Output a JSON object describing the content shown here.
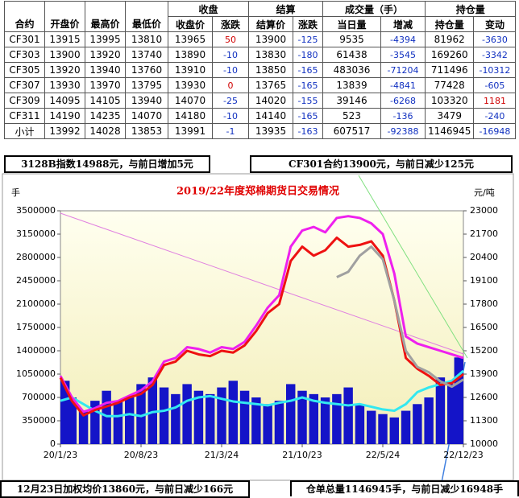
{
  "table": {
    "group_headers": [
      "收盘",
      "结算",
      "成交量（手）",
      "持仓量"
    ],
    "columns": [
      "合约",
      "开盘价",
      "最高价",
      "最低价",
      "收盘价",
      "涨跌",
      "结算价",
      "涨跌",
      "当日量",
      "增减",
      "持仓量",
      "变动"
    ],
    "rows": [
      [
        "CF301",
        13915,
        13995,
        13810,
        13965,
        50,
        13900,
        -125,
        9535,
        -4394,
        81962,
        -3630
      ],
      [
        "CF303",
        13900,
        13920,
        13740,
        13890,
        -10,
        13830,
        -180,
        61438,
        -3545,
        169260,
        -3342
      ],
      [
        "CF305",
        13920,
        13940,
        13760,
        13910,
        -10,
        13850,
        -165,
        483036,
        -71204,
        711496,
        -10312
      ],
      [
        "CF307",
        13930,
        13970,
        13795,
        13930,
        0,
        13765,
        -165,
        13839,
        -4841,
        77428,
        -605
      ],
      [
        "CF309",
        14095,
        14105,
        13940,
        14070,
        -25,
        14020,
        -155,
        39146,
        -6268,
        103320,
        1181
      ],
      [
        "CF311",
        14190,
        14235,
        14070,
        14180,
        -10,
        14140,
        -165,
        523,
        -136,
        3479,
        -240
      ],
      [
        "小计",
        13992,
        14028,
        13853,
        13991,
        -1,
        13935,
        -163,
        607517,
        -92388,
        1146945,
        -16948
      ]
    ]
  },
  "captions": [
    "3128B指数14988元，与前日增加5元",
    "CF301合约13900元，与前日减少125元",
    "12月23日加权均价13860元，与前日减少166元",
    "仓单总量1146945手，与前日减少16948手"
  ],
  "chart_data": {
    "type": "combo",
    "title": "2019/22年度郑棉期货日交易情况",
    "y_label": "手",
    "y2_label": "元/吨",
    "categories": [
      "20/1/23",
      null,
      null,
      null,
      null,
      null,
      null,
      "20/8/23",
      null,
      null,
      null,
      null,
      null,
      null,
      "21/3/24",
      null,
      null,
      null,
      null,
      null,
      null,
      "21/10/23",
      null,
      null,
      null,
      null,
      null,
      null,
      "22/5/24",
      null,
      null,
      null,
      null,
      null,
      null,
      "22/12/23"
    ],
    "ylim": [
      0,
      3500000
    ],
    "yticks": [
      0,
      350000,
      700000,
      1050000,
      1400000,
      1750000,
      2100000,
      2450000,
      2800000,
      3150000,
      3500000
    ],
    "y2lim": [
      10000,
      23000
    ],
    "y2ticks": [
      10000,
      11300,
      12600,
      13900,
      15200,
      16500,
      17800,
      19100,
      20400,
      21700,
      23000
    ],
    "grid": false,
    "series": [
      {
        "type": "bar",
        "color": "#1414c8",
        "values": [
          950000,
          700000,
          500000,
          650000,
          800000,
          650000,
          700000,
          900000,
          1000000,
          850000,
          750000,
          900000,
          800000,
          750000,
          850000,
          950000,
          800000,
          700000,
          600000,
          650000,
          900000,
          800000,
          750000,
          700000,
          750000,
          850000,
          600000,
          500000,
          450000,
          400000,
          500000,
          600000,
          700000,
          1000000,
          900000,
          1300000
        ]
      },
      {
        "type": "line",
        "color": "#33e8f0",
        "values": [
          650000,
          700000,
          600000,
          500000,
          420000,
          420000,
          450000,
          420000,
          480000,
          500000,
          550000,
          650000,
          700000,
          720000,
          680000,
          640000,
          620000,
          600000,
          580000,
          620000,
          650000,
          700000,
          650000,
          620000,
          600000,
          580000,
          600000,
          560000,
          520000,
          500000,
          600000,
          780000,
          850000,
          900000,
          950000,
          1100000
        ]
      },
      {
        "type": "line",
        "axis": "y2",
        "color": "#ee20ee",
        "values": [
          13800,
          12600,
          11800,
          12000,
          12300,
          12400,
          12700,
          13000,
          13500,
          14600,
          14800,
          15400,
          15300,
          15100,
          15400,
          15300,
          15700,
          16600,
          17600,
          18300,
          21000,
          21900,
          22100,
          21800,
          22600,
          22700,
          22600,
          22300,
          21700,
          19500,
          16000,
          15600,
          15400,
          15200,
          15000,
          14800
        ]
      },
      {
        "type": "line",
        "axis": "y2",
        "color": "#ee1111",
        "values": [
          13700,
          12400,
          11600,
          11900,
          12100,
          12300,
          12600,
          12800,
          13300,
          14400,
          14600,
          15200,
          15000,
          14900,
          15200,
          15100,
          15500,
          16300,
          17300,
          17800,
          20200,
          21000,
          20500,
          20800,
          21500,
          21000,
          21100,
          21300,
          20500,
          18000,
          14800,
          14200,
          13800,
          13300,
          13400,
          13900
        ]
      },
      {
        "type": "line",
        "axis": "y2",
        "color": "#a0a0a0",
        "values": [
          null,
          null,
          null,
          null,
          null,
          null,
          null,
          null,
          null,
          null,
          null,
          null,
          null,
          null,
          null,
          null,
          null,
          null,
          null,
          null,
          null,
          null,
          null,
          null,
          19300,
          19600,
          20500,
          21000,
          20300,
          18000,
          15200,
          14300,
          14000,
          13500,
          13200,
          13600
        ]
      }
    ]
  }
}
